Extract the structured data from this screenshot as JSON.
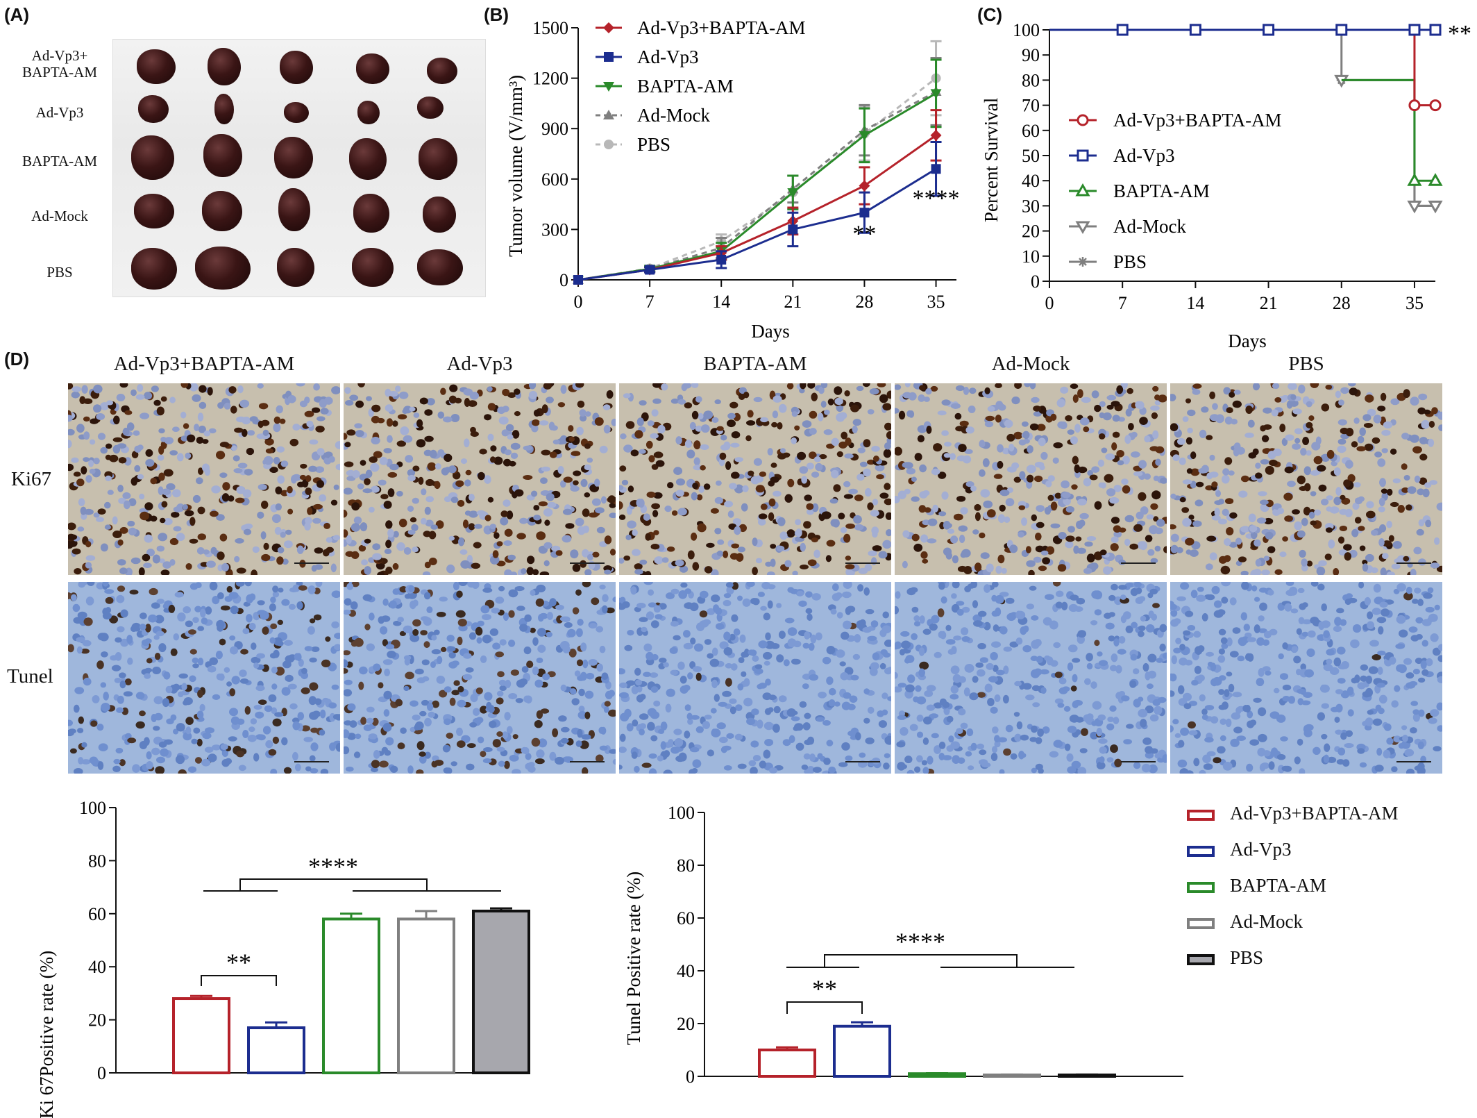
{
  "panel_labels": {
    "a": "(A)",
    "b": "(B)",
    "c": "(C)",
    "d": "(D)"
  },
  "panelA": {
    "rows": [
      "Ad-Vp3+ BAPTA-AM",
      "Ad-Vp3",
      "BAPTA-AM",
      "Ad-Mock",
      "PBS"
    ],
    "row_lines": [
      [
        "Ad-Vp3+",
        "BAPTA-AM"
      ],
      [
        "Ad-Vp3"
      ],
      [
        "BAPTA-AM"
      ],
      [
        "Ad-Mock"
      ],
      [
        "PBS"
      ]
    ]
  },
  "colors": {
    "red": "#b5222a",
    "blue": "#1c2d8f",
    "green": "#2a8a2a",
    "gray": "#7f7f7f",
    "lightgray": "#b8b8b8",
    "darkfill": "#a7a7ad"
  },
  "chart_data": [
    {
      "type": "line",
      "id": "B",
      "xlabel": "Days",
      "ylabel": "Tumor volume (V/mm³)",
      "x": [
        0,
        7,
        14,
        21,
        28,
        35
      ],
      "xlim": [
        0,
        37
      ],
      "ylim": [
        0,
        1500
      ],
      "yticks": [
        0,
        300,
        600,
        900,
        1200,
        1500
      ],
      "series": [
        {
          "name": "Ad-Vp3+BAPTA-AM",
          "values": [
            0,
            60,
            160,
            350,
            560,
            860
          ],
          "err": [
            0,
            15,
            40,
            80,
            110,
            150
          ]
        },
        {
          "name": "Ad-Vp3",
          "values": [
            0,
            60,
            120,
            300,
            400,
            660
          ],
          "err": [
            0,
            15,
            50,
            100,
            120,
            160
          ]
        },
        {
          "name": "BAPTA-AM",
          "values": [
            0,
            65,
            170,
            520,
            860,
            1110
          ],
          "err": [
            0,
            15,
            50,
            100,
            160,
            200
          ]
        },
        {
          "name": "Ad-Mock",
          "values": [
            0,
            65,
            190,
            540,
            890,
            1120
          ],
          "err": [
            0,
            15,
            60,
            80,
            150,
            200
          ]
        },
        {
          "name": "PBS",
          "values": [
            0,
            68,
            230,
            520,
            870,
            1200
          ],
          "err": [
            0,
            15,
            40,
            100,
            160,
            220
          ]
        }
      ],
      "annotations": [
        {
          "text": "**",
          "x": 28,
          "y": 230
        },
        {
          "text": "****",
          "x": 35,
          "y": 440
        }
      ]
    },
    {
      "type": "line",
      "id": "C",
      "xlabel": "Days",
      "ylabel": "Percent Survival",
      "xticks": [
        0,
        7,
        14,
        21,
        28,
        35
      ],
      "xlim": [
        0,
        37
      ],
      "ylim": [
        0,
        100
      ],
      "yticks": [
        0,
        10,
        20,
        30,
        40,
        50,
        60,
        70,
        80,
        90,
        100
      ],
      "series": [
        {
          "name": "Ad-Vp3+BAPTA-AM",
          "steps": [
            [
              0,
              100
            ],
            [
              35,
              100
            ],
            [
              35,
              70
            ],
            [
              37,
              70
            ]
          ],
          "markers": [
            [
              35,
              70
            ],
            [
              37,
              70
            ]
          ]
        },
        {
          "name": "Ad-Vp3",
          "steps": [
            [
              0,
              100
            ],
            [
              37,
              100
            ]
          ],
          "markers": [
            [
              7,
              100
            ],
            [
              14,
              100
            ],
            [
              21,
              100
            ],
            [
              28,
              100
            ],
            [
              35,
              100
            ],
            [
              37,
              100
            ]
          ]
        },
        {
          "name": "BAPTA-AM",
          "steps": [
            [
              28,
              80
            ],
            [
              35,
              80
            ],
            [
              35,
              40
            ],
            [
              37,
              40
            ]
          ],
          "markers": [
            [
              35,
              40
            ],
            [
              37,
              40
            ]
          ]
        },
        {
          "name": "Ad-Mock",
          "steps": [
            [
              28,
              100
            ],
            [
              28,
              80
            ],
            [
              35,
              80
            ],
            [
              35,
              30
            ],
            [
              37,
              30
            ]
          ],
          "markers": [
            [
              28,
              80
            ],
            [
              35,
              30
            ],
            [
              37,
              30
            ]
          ]
        },
        {
          "name": "PBS",
          "steps": [
            [
              28,
              80
            ],
            [
              35,
              80
            ],
            [
              35,
              30
            ],
            [
              37,
              30
            ]
          ],
          "markers": [
            [
              28,
              80
            ]
          ]
        }
      ],
      "annotations": [
        {
          "text": "**",
          "x": 37,
          "y": 100
        }
      ]
    },
    {
      "type": "bar",
      "id": "Ki67",
      "ylabel": "Ki 67Positive rate (%)",
      "categories": [
        "Ad-Vp3+BAPTA-AM",
        "Ad-Vp3",
        "BAPTA-AM",
        "Ad-Mock",
        "PBS"
      ],
      "values": [
        28,
        17,
        58,
        58,
        61
      ],
      "err": [
        1,
        2,
        2,
        3,
        1
      ],
      "ylim": [
        0,
        100
      ],
      "yticks": [
        0,
        20,
        40,
        60,
        80,
        100
      ],
      "annotations": [
        "**",
        "****"
      ]
    },
    {
      "type": "bar",
      "id": "Tunel",
      "ylabel": "Tunel Positive rate (%)",
      "categories": [
        "Ad-Vp3+BAPTA-AM",
        "Ad-Vp3",
        "BAPTA-AM",
        "Ad-Mock",
        "PBS"
      ],
      "values": [
        10,
        19,
        1,
        0.5,
        0.5
      ],
      "err": [
        1,
        1.5,
        0.2,
        0.2,
        0.2
      ],
      "ylim": [
        0,
        100
      ],
      "yticks": [
        0,
        20,
        40,
        60,
        80,
        100
      ],
      "annotations": [
        "**",
        "****"
      ]
    }
  ],
  "legend_bars": [
    "Ad-Vp3+BAPTA-AM",
    "Ad-Vp3",
    "BAPTA-AM",
    "Ad-Mock",
    "PBS"
  ],
  "panelD": {
    "columns": [
      "Ad-Vp3+BAPTA-AM",
      "Ad-Vp3",
      "BAPTA-AM",
      "Ad-Mock",
      "PBS"
    ],
    "rows": [
      "Ki67",
      "Tunel"
    ]
  }
}
